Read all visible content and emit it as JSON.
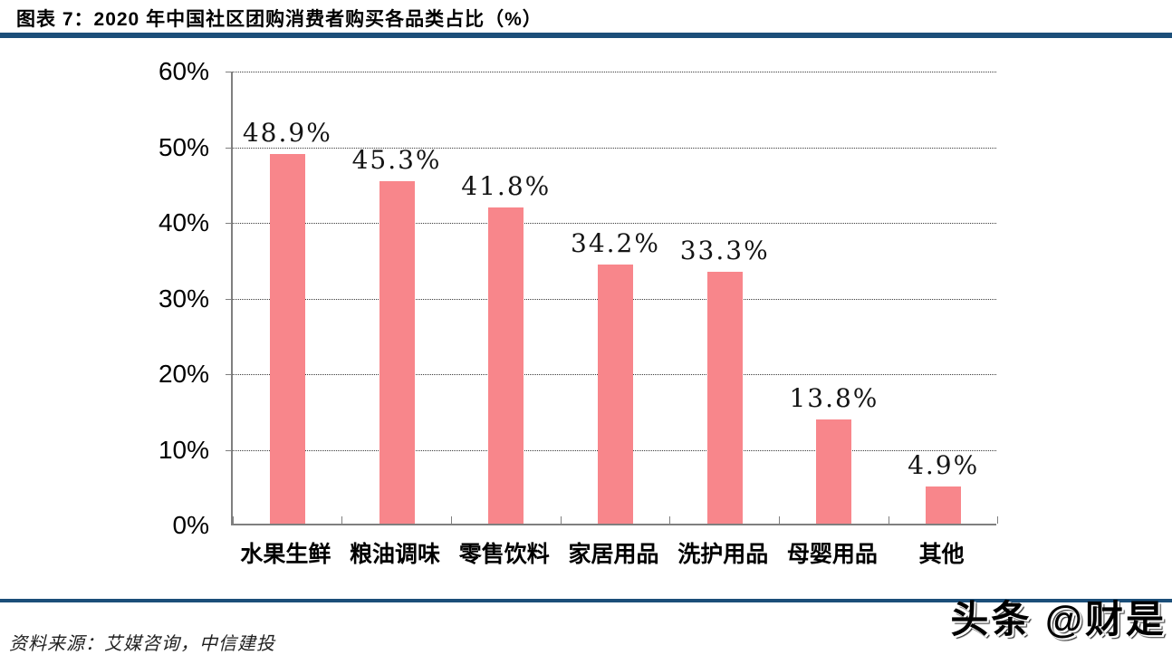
{
  "header": {
    "title": "图表 7：2020 年中国社区团购消费者购买各品类占比（%）"
  },
  "chart_data": {
    "type": "bar",
    "title": "2020 年中国社区团购消费者购买各品类占比（%）",
    "categories": [
      "水果生鲜",
      "粮油调味",
      "零售饮料",
      "家居用品",
      "洗护用品",
      "母婴用品",
      "其他"
    ],
    "values": [
      48.9,
      45.3,
      41.8,
      34.2,
      33.3,
      13.8,
      4.9
    ],
    "value_labels": [
      "48.9%",
      "45.3%",
      "41.8%",
      "34.2%",
      "33.3%",
      "13.8%",
      "4.9%"
    ],
    "xlabel": "",
    "ylabel": "",
    "ylim": [
      0,
      60
    ],
    "ytick_values": [
      0,
      10,
      20,
      30,
      40,
      50,
      60
    ],
    "ytick_labels": [
      "0%",
      "10%",
      "20%",
      "30%",
      "40%",
      "50%",
      "60%"
    ],
    "grid": "horizontal-dotted",
    "legend": "none"
  },
  "colors": {
    "bar": "#F8868B",
    "rule": "#1B4E79",
    "axis": "#7f7f7f",
    "gridline": "#3c3c3c"
  },
  "footer": {
    "source": "资料来源：艾媒咨询，中信建投",
    "watermark": "头条 @财是"
  }
}
